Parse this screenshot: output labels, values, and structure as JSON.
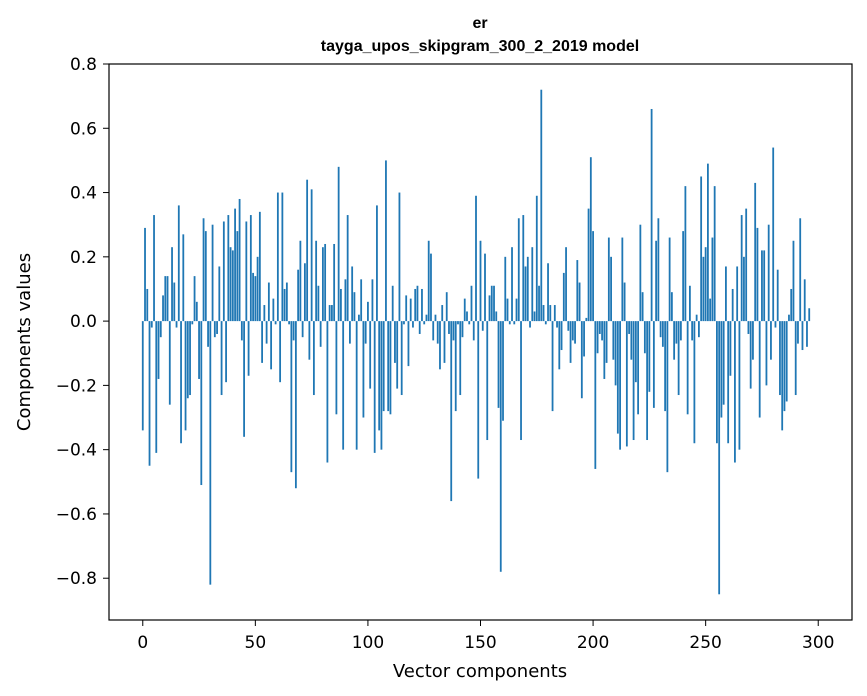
{
  "chart_data": {
    "type": "bar",
    "title": "er",
    "subtitle": "tayga_upos_skipgram_300_2_2019 model",
    "xlabel": "Vector components",
    "ylabel": "Components values",
    "xlim": [
      -15,
      315
    ],
    "ylim": [
      -0.93,
      0.8
    ],
    "xticks": [
      0,
      50,
      100,
      150,
      200,
      250,
      300
    ],
    "xtick_labels": [
      "0",
      "50",
      "100",
      "150",
      "200",
      "250",
      "300"
    ],
    "yticks": [
      -0.8,
      -0.6,
      -0.4,
      -0.2,
      0.0,
      0.2,
      0.4,
      0.6,
      0.8
    ],
    "ytick_labels": [
      "−0.8",
      "−0.6",
      "−0.4",
      "−0.2",
      "0.0",
      "0.2",
      "0.4",
      "0.6",
      "0.8"
    ],
    "bar_color": "#1f77b4",
    "grid": false,
    "values": [
      -0.34,
      0.29,
      0.1,
      -0.45,
      -0.02,
      0.33,
      -0.41,
      -0.18,
      -0.05,
      0.08,
      0.14,
      0.14,
      -0.26,
      0.23,
      0.12,
      -0.02,
      0.36,
      -0.38,
      0.27,
      -0.34,
      -0.24,
      -0.23,
      -0.01,
      0.14,
      0.06,
      -0.18,
      -0.51,
      0.32,
      0.28,
      -0.08,
      -0.82,
      0.3,
      -0.05,
      -0.04,
      0.17,
      -0.23,
      0.31,
      -0.19,
      0.33,
      0.23,
      0.22,
      0.35,
      0.28,
      0.38,
      -0.06,
      -0.36,
      0.31,
      -0.17,
      0.33,
      0.15,
      0.14,
      0.2,
      0.34,
      -0.13,
      0.05,
      -0.07,
      0.12,
      -0.15,
      0.07,
      -0.01,
      0.4,
      -0.19,
      0.4,
      0.1,
      0.12,
      -0.01,
      -0.47,
      -0.06,
      -0.52,
      0.16,
      0.25,
      -0.05,
      0.18,
      0.44,
      -0.12,
      0.41,
      -0.23,
      0.25,
      0.11,
      -0.08,
      0.23,
      0.24,
      -0.44,
      0.05,
      0.05,
      0.24,
      -0.29,
      0.48,
      0.1,
      -0.4,
      0.13,
      0.33,
      -0.07,
      0.17,
      0.09,
      -0.4,
      0.02,
      0.13,
      -0.3,
      -0.07,
      0.06,
      -0.21,
      0.13,
      -0.41,
      0.36,
      -0.34,
      -0.4,
      -0.28,
      0.5,
      -0.28,
      -0.29,
      0.11,
      -0.13,
      -0.21,
      0.4,
      -0.23,
      -0.01,
      0.08,
      -0.14,
      0.07,
      -0.02,
      0.1,
      0.11,
      -0.04,
      0.1,
      -0.01,
      0.02,
      0.25,
      0.21,
      -0.06,
      0.02,
      -0.07,
      -0.15,
      0.05,
      -0.13,
      0.09,
      -0.04,
      -0.56,
      -0.06,
      -0.28,
      -0.01,
      -0.23,
      -0.05,
      0.07,
      0.03,
      -0.01,
      0.11,
      -0.06,
      0.39,
      -0.49,
      0.25,
      -0.03,
      0.21,
      -0.37,
      0.08,
      0.11,
      0.11,
      0.03,
      -0.27,
      -0.78,
      -0.31,
      0.2,
      0.07,
      -0.01,
      0.23,
      -0.01,
      0.07,
      0.32,
      -0.37,
      0.33,
      0.17,
      0.2,
      -0.02,
      0.23,
      0.03,
      0.39,
      0.11,
      0.72,
      0.05,
      -0.01,
      0.18,
      0.05,
      -0.28,
      0.05,
      -0.02,
      -0.15,
      -0.09,
      0.15,
      0.23,
      -0.03,
      -0.13,
      -0.06,
      -0.07,
      0.19,
      0.12,
      -0.24,
      -0.11,
      0.01,
      0.35,
      0.51,
      0.28,
      -0.46,
      -0.1,
      -0.04,
      -0.06,
      -0.18,
      -0.13,
      0.26,
      0.2,
      -0.12,
      -0.2,
      -0.35,
      -0.4,
      0.26,
      0.12,
      -0.39,
      -0.04,
      -0.12,
      -0.37,
      -0.19,
      -0.29,
      0.3,
      0.09,
      -0.1,
      -0.37,
      -0.22,
      0.66,
      -0.27,
      0.25,
      0.32,
      -0.05,
      -0.08,
      -0.28,
      -0.47,
      0.26,
      0.09,
      -0.12,
      -0.07,
      -0.23,
      -0.06,
      0.28,
      0.42,
      -0.29,
      0.11,
      -0.06,
      -0.38,
      0.02,
      -0.05,
      0.45,
      0.2,
      0.23,
      0.49,
      0.07,
      0.26,
      0.42,
      -0.38,
      -0.85,
      -0.3,
      -0.26,
      0.17,
      -0.38,
      -0.17,
      0.1,
      -0.44,
      0.17,
      -0.4,
      0.33,
      0.2,
      0.35,
      -0.04,
      -0.21,
      -0.12,
      0.43,
      0.29,
      -0.3,
      0.22,
      0.22,
      -0.2,
      0.3,
      -0.12,
      0.54,
      -0.02,
      0.16,
      -0.23,
      -0.34,
      -0.28,
      -0.25,
      0.02,
      0.1,
      0.25,
      -0.23,
      -0.07,
      0.32,
      -0.09,
      0.13,
      -0.08,
      0.04
    ]
  }
}
